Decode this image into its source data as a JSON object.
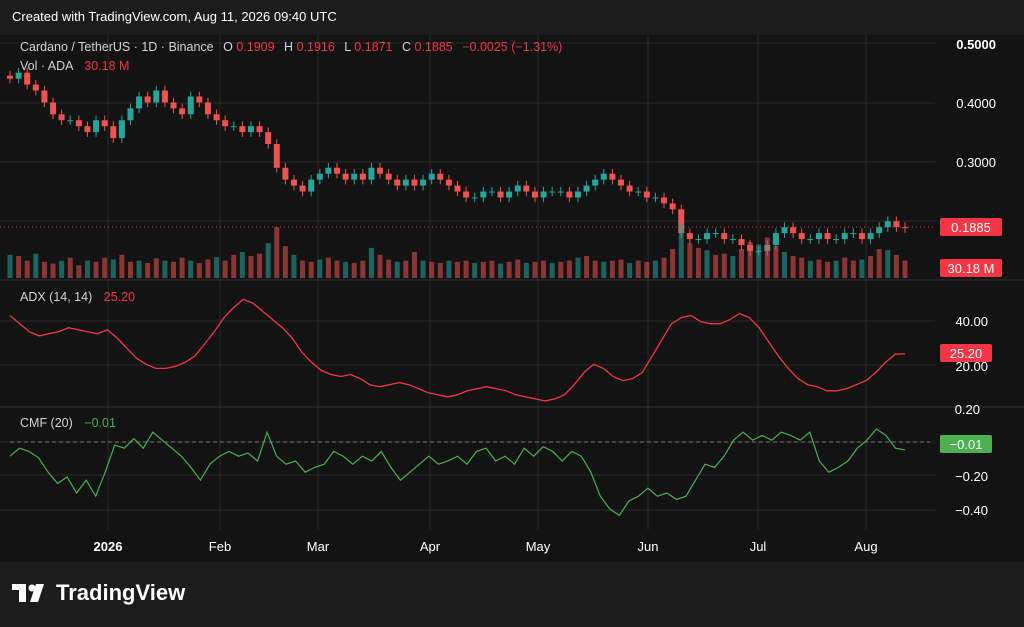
{
  "header": {
    "text": "Created with TradingView.com, Aug 11, 2026 09:40 UTC"
  },
  "legend": {
    "symbol": "Cardano / TetherUS · 1D · Binance",
    "o_label": "O",
    "o_value": "0.1909",
    "h_label": "H",
    "h_value": "0.1916",
    "l_label": "L",
    "l_value": "0.1871",
    "c_label": "C",
    "c_value": "0.1885",
    "change": "−0.0025 (−1.31%)",
    "vol_label": "Vol · ADA",
    "vol_value": "30.18 M"
  },
  "indicators": {
    "adx_label": "ADX (14, 14)",
    "adx_value": "25.20",
    "cmf_label": "CMF (20)",
    "cmf_value": "−0.01"
  },
  "badges": {
    "price": "0.1885",
    "volume": "30.18 M",
    "adx": "25.20",
    "cmf": "−0.01"
  },
  "colors": {
    "up": "#26a69a",
    "down": "#ef5350",
    "adx": "#f23645",
    "cmf": "#4caf50",
    "background": "#131313",
    "grid": "#2a2a2a"
  },
  "logo": {
    "text": "TradingView",
    "icon": "tradingview-logo-icon"
  },
  "chart_data": [
    {
      "type": "candlestick",
      "title": "Cardano / TetherUS · 1D · Binance",
      "x_ticks": [
        "2026",
        "Feb",
        "Mar",
        "Apr",
        "May",
        "Jun",
        "Jul",
        "Aug"
      ],
      "y_ticks": [
        "0.5000",
        "0.4000",
        "0.3000"
      ],
      "ylim": [
        0.16,
        0.5
      ],
      "last_price": 0.1885,
      "close_series": [
        0.44,
        0.45,
        0.43,
        0.42,
        0.4,
        0.38,
        0.37,
        0.37,
        0.36,
        0.35,
        0.37,
        0.36,
        0.34,
        0.37,
        0.39,
        0.41,
        0.4,
        0.42,
        0.4,
        0.39,
        0.38,
        0.41,
        0.4,
        0.38,
        0.37,
        0.36,
        0.36,
        0.35,
        0.36,
        0.35,
        0.33,
        0.29,
        0.27,
        0.26,
        0.25,
        0.27,
        0.28,
        0.29,
        0.28,
        0.27,
        0.28,
        0.27,
        0.29,
        0.28,
        0.27,
        0.26,
        0.27,
        0.26,
        0.27,
        0.28,
        0.27,
        0.26,
        0.25,
        0.24,
        0.24,
        0.25,
        0.25,
        0.24,
        0.25,
        0.26,
        0.25,
        0.24,
        0.25,
        0.25,
        0.25,
        0.24,
        0.25,
        0.26,
        0.27,
        0.28,
        0.27,
        0.26,
        0.25,
        0.25,
        0.24,
        0.24,
        0.23,
        0.22,
        0.18,
        0.17,
        0.17,
        0.18,
        0.18,
        0.17,
        0.17,
        0.16,
        0.15,
        0.15,
        0.16,
        0.18,
        0.19,
        0.18,
        0.17,
        0.17,
        0.18,
        0.17,
        0.17,
        0.18,
        0.18,
        0.17,
        0.18,
        0.19,
        0.2,
        0.19,
        0.1885
      ]
    },
    {
      "type": "bar",
      "title": "Vol · ADA",
      "last_value": "30.18 M",
      "values": [
        40,
        38,
        30,
        42,
        28,
        25,
        30,
        35,
        22,
        30,
        28,
        35,
        32,
        40,
        28,
        30,
        26,
        34,
        30,
        28,
        35,
        30,
        26,
        32,
        36,
        30,
        40,
        45,
        38,
        42,
        60,
        88,
        55,
        40,
        30,
        28,
        32,
        35,
        30,
        28,
        26,
        30,
        52,
        40,
        32,
        28,
        30,
        45,
        30,
        28,
        26,
        30,
        28,
        30,
        26,
        28,
        30,
        25,
        28,
        32,
        26,
        28,
        30,
        26,
        28,
        30,
        35,
        38,
        30,
        28,
        30,
        32,
        26,
        30,
        28,
        30,
        35,
        50,
        95,
        60,
        52,
        48,
        40,
        42,
        38,
        50,
        62,
        58,
        70,
        55,
        45,
        38,
        35,
        30,
        32,
        28,
        30,
        35,
        30,
        32,
        38,
        50,
        48,
        40,
        30
      ]
    },
    {
      "type": "line",
      "title": "ADX (14, 14)",
      "y_ticks": [
        "40.00",
        "20.00"
      ],
      "ylim": [
        0,
        60
      ],
      "last_value": 25.2,
      "values": [
        44,
        40,
        36,
        34,
        35,
        36,
        38,
        37,
        36,
        35,
        37,
        33,
        28,
        23,
        20,
        18,
        18,
        19,
        21,
        24,
        30,
        36,
        43,
        48,
        52,
        50,
        46,
        42,
        38,
        33,
        26,
        21,
        17,
        15,
        14,
        15,
        13,
        10,
        9,
        10,
        11,
        10,
        8,
        6,
        5,
        4,
        5,
        7,
        8,
        9,
        8,
        7,
        5,
        4,
        3,
        2,
        3,
        5,
        10,
        16,
        20,
        18,
        14,
        12,
        13,
        16,
        24,
        32,
        40,
        43,
        44,
        41,
        40,
        40,
        42,
        45,
        43,
        38,
        31,
        24,
        18,
        13,
        10,
        9,
        7,
        7,
        8,
        10,
        12,
        16,
        21,
        25,
        25.2
      ]
    },
    {
      "type": "line",
      "title": "CMF (20)",
      "y_ticks": [
        "0.20",
        "−0.20",
        "−0.40"
      ],
      "ylim": [
        -0.48,
        0.22
      ],
      "last_value": -0.01,
      "values": [
        -0.05,
        0.0,
        -0.02,
        -0.06,
        -0.15,
        -0.22,
        -0.18,
        -0.28,
        -0.2,
        -0.3,
        -0.15,
        0.02,
        0.0,
        0.06,
        0.0,
        0.1,
        0.05,
        0.0,
        -0.05,
        -0.12,
        -0.2,
        -0.1,
        -0.05,
        -0.02,
        -0.05,
        -0.03,
        -0.08,
        0.1,
        -0.05,
        -0.1,
        -0.08,
        -0.15,
        -0.12,
        -0.1,
        -0.02,
        -0.05,
        -0.1,
        -0.05,
        -0.08,
        -0.02,
        -0.12,
        -0.2,
        -0.15,
        -0.1,
        -0.05,
        -0.1,
        -0.08,
        -0.05,
        -0.1,
        -0.02,
        0.0,
        -0.08,
        -0.05,
        -0.1,
        0.0,
        -0.05,
        0.01,
        -0.02,
        -0.08,
        -0.02,
        -0.05,
        -0.15,
        -0.3,
        -0.38,
        -0.42,
        -0.33,
        -0.3,
        -0.25,
        -0.3,
        -0.28,
        -0.32,
        -0.3,
        -0.2,
        -0.1,
        -0.12,
        -0.05,
        0.05,
        0.1,
        0.05,
        0.08,
        0.05,
        0.1,
        0.08,
        0.05,
        0.1,
        -0.08,
        -0.15,
        -0.12,
        -0.08,
        0.0,
        0.05,
        0.12,
        0.08,
        0.0,
        -0.01
      ]
    }
  ]
}
